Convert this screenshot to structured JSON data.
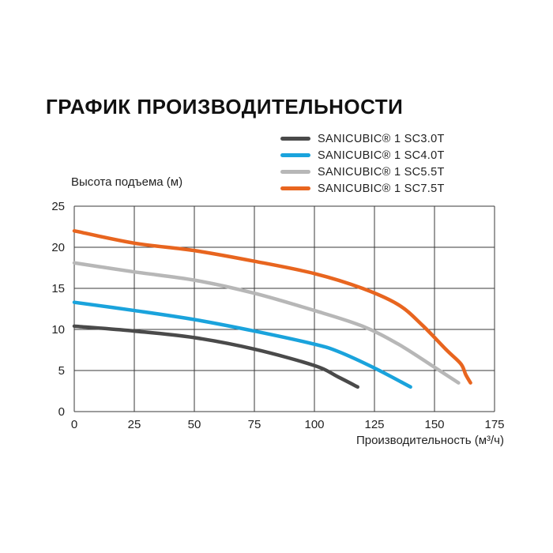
{
  "chart_data": {
    "type": "line",
    "title": "ГРАФИК ПРОИЗВОДИТЕЛЬНОСТИ",
    "xlabel": "Производительность (м³/ч)",
    "ylabel": "Высота подъема (м)",
    "xlim": [
      0,
      175
    ],
    "ylim": [
      0,
      25
    ],
    "xticks": [
      "0",
      "25",
      "50",
      "75",
      "100",
      "125",
      "150",
      "175"
    ],
    "yticks": [
      "0",
      "5",
      "10",
      "15",
      "20",
      "25"
    ],
    "grid": true,
    "legend_position": "top-right",
    "series": [
      {
        "name": "SANICUBIC® 1 SC3.0T",
        "color": "#4a4a4a",
        "points": [
          [
            0,
            10.4
          ],
          [
            25,
            9.8
          ],
          [
            50,
            9.0
          ],
          [
            75,
            7.6
          ],
          [
            100,
            5.6
          ],
          [
            110,
            4.2
          ],
          [
            118,
            3.0
          ]
        ]
      },
      {
        "name": "SANICUBIC® 1 SC4.0T",
        "color": "#1aa3dc",
        "points": [
          [
            0,
            13.3
          ],
          [
            25,
            12.3
          ],
          [
            50,
            11.2
          ],
          [
            75,
            9.8
          ],
          [
            100,
            8.2
          ],
          [
            110,
            7.3
          ],
          [
            125,
            5.3
          ],
          [
            140,
            3.0
          ]
        ]
      },
      {
        "name": "SANICUBIC® 1 SC5.5T",
        "color": "#b7b7b7",
        "points": [
          [
            0,
            18.1
          ],
          [
            25,
            17.0
          ],
          [
            50,
            16.0
          ],
          [
            75,
            14.4
          ],
          [
            100,
            12.3
          ],
          [
            120,
            10.4
          ],
          [
            135,
            8.2
          ],
          [
            150,
            5.4
          ],
          [
            160,
            3.5
          ]
        ]
      },
      {
        "name": "SANICUBIC® 1 SC7.5T",
        "color": "#e8651f",
        "points": [
          [
            0,
            22.0
          ],
          [
            25,
            20.5
          ],
          [
            50,
            19.6
          ],
          [
            75,
            18.3
          ],
          [
            100,
            16.8
          ],
          [
            120,
            15.0
          ],
          [
            135,
            13.0
          ],
          [
            145,
            10.5
          ],
          [
            155,
            7.5
          ],
          [
            161,
            5.8
          ],
          [
            163,
            4.5
          ],
          [
            165,
            3.5
          ]
        ]
      }
    ]
  }
}
